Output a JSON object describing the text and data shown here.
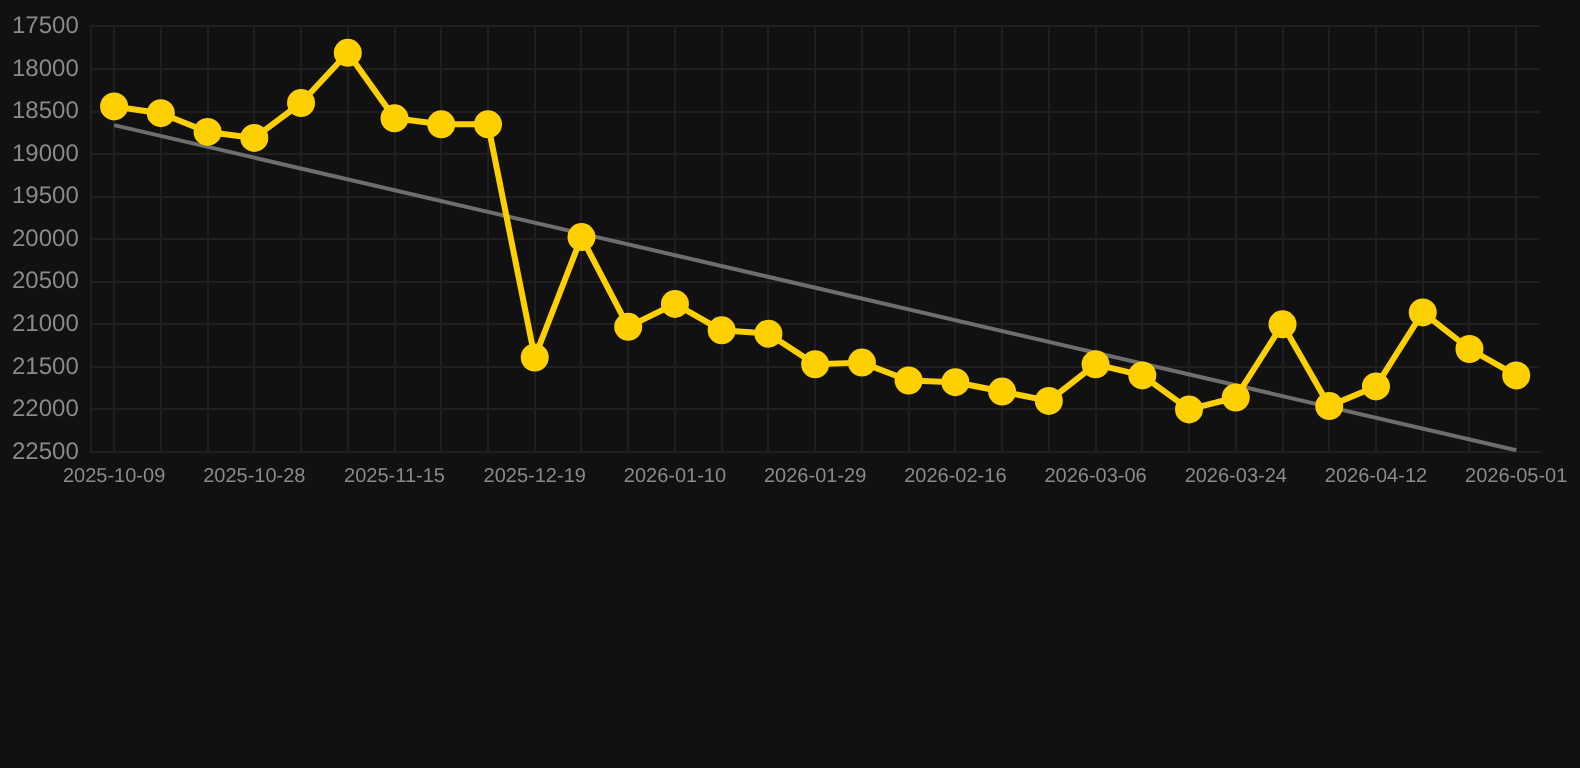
{
  "chart_data": {
    "type": "line",
    "categories": [
      "2025-10-09",
      null,
      null,
      "2025-10-28",
      null,
      null,
      "2025-11-15",
      null,
      null,
      "2025-12-19",
      null,
      null,
      "2026-01-10",
      null,
      null,
      "2026-01-29",
      null,
      null,
      "2026-02-16",
      null,
      null,
      "2026-03-06",
      null,
      null,
      "2026-03-24",
      null,
      null,
      "2026-04-12",
      null,
      null,
      "2026-05-01"
    ],
    "series": [
      {
        "color": "#ffd000",
        "marker": "circle",
        "values": [
          18440,
          18520,
          18740,
          18810,
          18400,
          17810,
          18580,
          18650,
          18650,
          21390,
          19975,
          21030,
          20760,
          21070,
          21110,
          21470,
          21450,
          21660,
          21680,
          21790,
          21900,
          21470,
          21600,
          22000,
          21860,
          21000,
          21960,
          21730,
          20860,
          21290,
          21600
        ]
      },
      {
        "color": "#6e6e6e",
        "marker": "none",
        "values": [
          18660,
          null,
          null,
          null,
          null,
          null,
          null,
          null,
          null,
          null,
          null,
          null,
          null,
          null,
          null,
          null,
          null,
          null,
          null,
          null,
          null,
          null,
          null,
          null,
          null,
          null,
          null,
          null,
          null,
          null,
          22480
        ]
      }
    ],
    "ylim": [
      22500,
      17500
    ],
    "yticks": [
      17500,
      18000,
      18500,
      19000,
      19500,
      20000,
      20500,
      21000,
      21500,
      22000,
      22500
    ],
    "grid": true
  }
}
